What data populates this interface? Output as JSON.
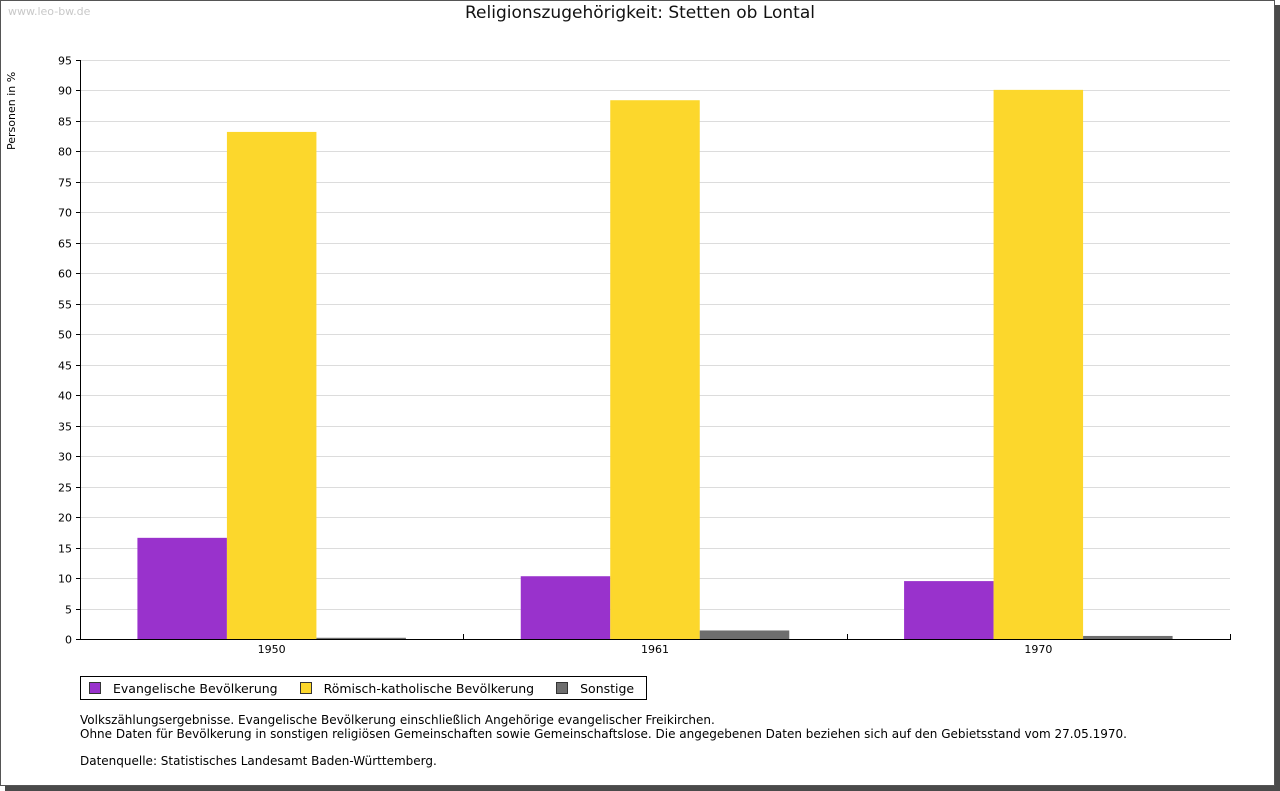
{
  "watermark": "www.leo-bw.de",
  "colors": {
    "evangelisch": "#9932cc",
    "katholisch": "#fcd72c",
    "sonstige": "#6e6e6e"
  },
  "notes": {
    "line1": "Volkszählungsergebnisse. Evangelische Bevölkerung einschließlich Angehörige evangelischer Freikirchen.",
    "line2": "Ohne Daten für Bevölkerung in sonstigen religiösen Gemeinschaften sowie Gemeinschaftslose. Die angegebenen Daten beziehen sich auf den Gebietsstand vom 27.05.1970.",
    "source": "Datenquelle: Statistisches Landesamt Baden-Württemberg."
  },
  "chart_data": {
    "type": "bar",
    "title": "Religionszugehörigkeit: Stetten ob Lontal",
    "xlabel": "",
    "ylabel": "Personen in %",
    "categories": [
      "1950",
      "1961",
      "1970"
    ],
    "ylim": [
      0,
      95
    ],
    "yticks": [
      0,
      5,
      10,
      15,
      20,
      25,
      30,
      35,
      40,
      45,
      50,
      55,
      60,
      65,
      70,
      75,
      80,
      85,
      90,
      95
    ],
    "grid": true,
    "legend_position": "bottom-left",
    "series": [
      {
        "name": "Evangelische Bevölkerung",
        "color": "#9932cc",
        "values": [
          16.6,
          10.3,
          9.5
        ]
      },
      {
        "name": "Römisch-katholische Bevölkerung",
        "color": "#fcd72c",
        "values": [
          83.2,
          88.4,
          90.1
        ]
      },
      {
        "name": "Sonstige",
        "color": "#6e6e6e",
        "values": [
          0.2,
          1.4,
          0.5
        ]
      }
    ]
  }
}
